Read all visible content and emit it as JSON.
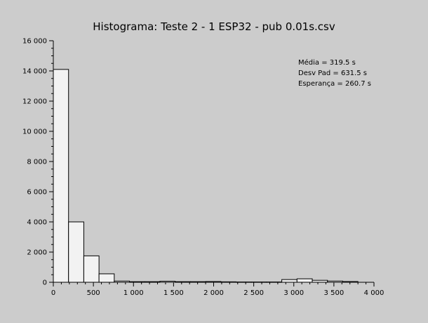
{
  "chart_data": {
    "type": "bar",
    "title": "Histograma: Teste 2 - 1 ESP32 - pub 0.01s.csv",
    "xlabel": "",
    "ylabel": "",
    "xlim": [
      0,
      4000
    ],
    "ylim": [
      0,
      16000
    ],
    "grid": false,
    "x_ticks": [
      0,
      500,
      1000,
      1500,
      2000,
      2500,
      3000,
      3500,
      4000
    ],
    "x_tick_labels": [
      "0",
      "500",
      "1 000",
      "1 500",
      "2 000",
      "2 500",
      "3 000",
      "3 500",
      "4 000"
    ],
    "y_ticks": [
      0,
      2000,
      4000,
      6000,
      8000,
      10000,
      12000,
      14000,
      16000
    ],
    "y_tick_labels": [
      "0",
      "2 000",
      "4 000",
      "6 000",
      "8 000",
      "10 000",
      "12 000",
      "14 000",
      "16 000"
    ],
    "bin_width": 190,
    "bin_starts": [
      0,
      190,
      380,
      570,
      760,
      950,
      1140,
      1330,
      1520,
      1710,
      1900,
      2090,
      2280,
      2470,
      2660,
      2850,
      3040,
      3230,
      3420,
      3610
    ],
    "values": [
      14100,
      4000,
      1750,
      560,
      80,
      40,
      40,
      70,
      40,
      40,
      50,
      30,
      20,
      20,
      20,
      180,
      230,
      130,
      80,
      50
    ],
    "annotations": [
      "Média = 319.5 s",
      "Desv Pad = 631.5 s",
      "Esperança = 260.7 s"
    ]
  }
}
